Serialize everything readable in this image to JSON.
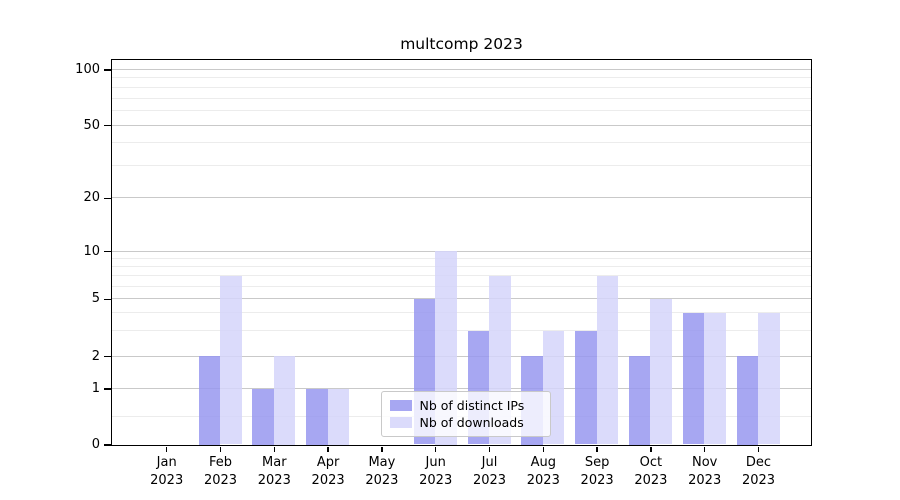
{
  "chart_data": {
    "type": "bar",
    "title": "multcomp 2023",
    "x_months": [
      "Jan",
      "Feb",
      "Mar",
      "Apr",
      "May",
      "Jun",
      "Jul",
      "Aug",
      "Sep",
      "Oct",
      "Nov",
      "Dec"
    ],
    "x_year": "2023",
    "series": [
      {
        "name": "Nb of distinct IPs",
        "color": "#9898f0",
        "values": [
          0,
          2,
          1,
          1,
          0,
          5,
          3,
          2,
          3,
          2,
          4,
          2
        ]
      },
      {
        "name": "Nb of downloads",
        "color": "#d5d5fa",
        "values": [
          0,
          7,
          2,
          1,
          0,
          10,
          7,
          3,
          7,
          5,
          4,
          4
        ]
      }
    ],
    "y_axis": {
      "scale": "symlog",
      "range": [
        0,
        100
      ],
      "major_ticks": [
        0,
        1,
        2,
        5,
        10,
        20,
        50,
        100
      ],
      "minor_gridlines": [
        0.5,
        3,
        4,
        6,
        7,
        8,
        9,
        30,
        40,
        60,
        70,
        80,
        90
      ]
    },
    "legend": {
      "position": "lower center"
    },
    "grid": true,
    "colors": {
      "spine": "#000000",
      "grid_major": "#c9c9c9",
      "grid_minor": "#ececec"
    }
  }
}
